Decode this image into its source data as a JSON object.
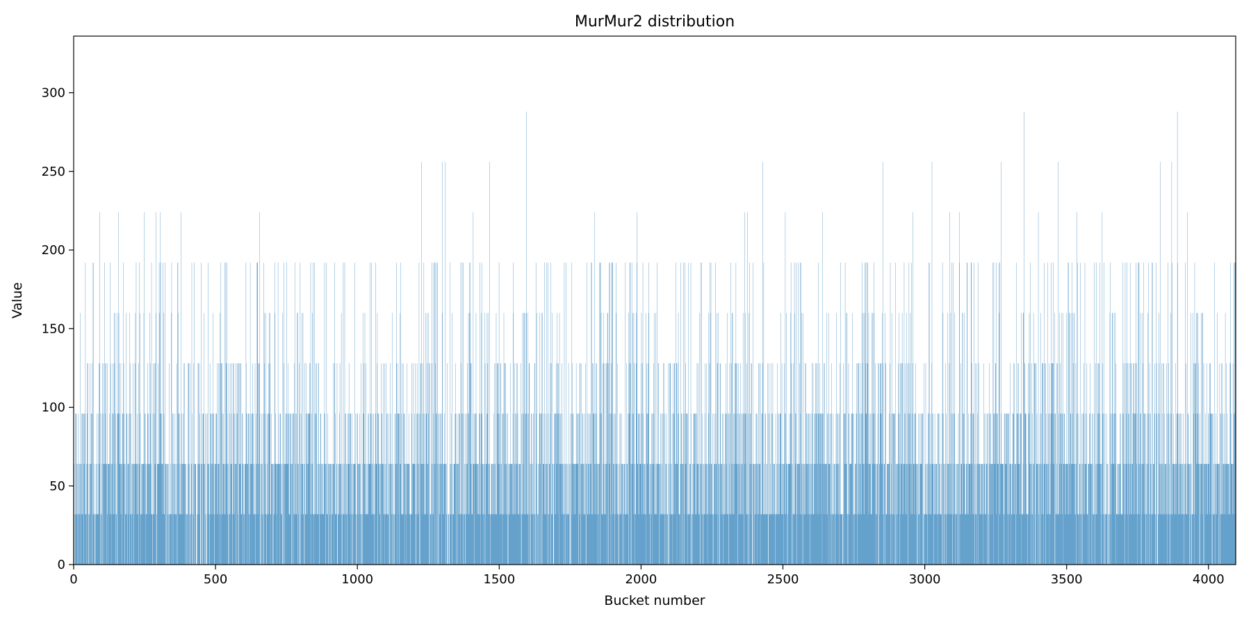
{
  "chart_data": {
    "type": "bar",
    "title": "MurMur2 distribution",
    "xlabel": "Bucket number",
    "ylabel": "Value",
    "xlim": [
      0,
      4096
    ],
    "ylim": [
      0,
      336
    ],
    "grid": false,
    "legend": "none",
    "bar_color": "#1f77b4",
    "x_ticks": [
      0,
      500,
      1000,
      1500,
      2000,
      2500,
      3000,
      3500,
      4000
    ],
    "y_ticks": [
      0,
      50,
      100,
      150,
      200,
      250,
      300
    ],
    "bucket_count": 4096,
    "value_levels": [
      0,
      32,
      64,
      96,
      128,
      160,
      192,
      224,
      256,
      288
    ],
    "level_share_approx": {
      "0": 0.1,
      "32": 0.26,
      "64": 0.3,
      "96": 0.17,
      "128": 0.09,
      "160": 0.04,
      "192": 0.025,
      "224": 0.01,
      "256": 0.004,
      "288": 0.001
    },
    "notable_bars": [
      {
        "x": 92,
        "value": 224
      },
      {
        "x": 157,
        "value": 224
      },
      {
        "x": 248,
        "value": 224
      },
      {
        "x": 290,
        "value": 224
      },
      {
        "x": 305,
        "value": 224
      },
      {
        "x": 378,
        "value": 224
      },
      {
        "x": 655,
        "value": 224
      },
      {
        "x": 1225,
        "value": 256
      },
      {
        "x": 1300,
        "value": 256
      },
      {
        "x": 1310,
        "value": 256
      },
      {
        "x": 1408,
        "value": 224
      },
      {
        "x": 1465,
        "value": 256
      },
      {
        "x": 1595,
        "value": 288
      },
      {
        "x": 1835,
        "value": 224
      },
      {
        "x": 1985,
        "value": 224
      },
      {
        "x": 2365,
        "value": 224
      },
      {
        "x": 2375,
        "value": 224
      },
      {
        "x": 2428,
        "value": 256
      },
      {
        "x": 2508,
        "value": 224
      },
      {
        "x": 2640,
        "value": 224
      },
      {
        "x": 2852,
        "value": 256
      },
      {
        "x": 2958,
        "value": 224
      },
      {
        "x": 3025,
        "value": 256
      },
      {
        "x": 3088,
        "value": 224
      },
      {
        "x": 3122,
        "value": 224
      },
      {
        "x": 3268,
        "value": 256
      },
      {
        "x": 3350,
        "value": 288
      },
      {
        "x": 3400,
        "value": 224
      },
      {
        "x": 3470,
        "value": 256
      },
      {
        "x": 3535,
        "value": 224
      },
      {
        "x": 3625,
        "value": 224
      },
      {
        "x": 3830,
        "value": 256
      },
      {
        "x": 3870,
        "value": 256
      },
      {
        "x": 3890,
        "value": 288
      },
      {
        "x": 3925,
        "value": 224
      }
    ]
  }
}
